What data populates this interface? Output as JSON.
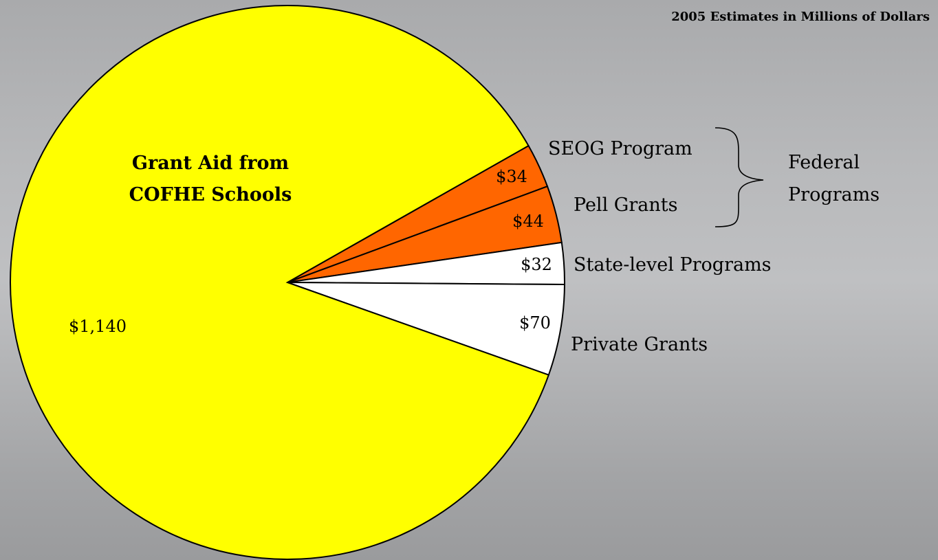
{
  "caption": "2005 Estimates in Millions of Dollars",
  "chart_data": {
    "type": "pie",
    "title": "2005 Estimates in Millions of Dollars",
    "slices": [
      {
        "label": "SEOG Program",
        "value": 34,
        "value_label": "$34",
        "color": "#ff6600"
      },
      {
        "label": "Pell Grants",
        "value": 44,
        "value_label": "$44",
        "color": "#ff6600"
      },
      {
        "label": "State-level Programs",
        "value": 32,
        "value_label": "$32",
        "color": "#ffffff"
      },
      {
        "label": "Private Grants",
        "value": 70,
        "value_label": "$70",
        "color": "#ffffff"
      },
      {
        "label": "Grant Aid from COFHE Schools",
        "value": 1140,
        "value_label": "$1,140",
        "color": "#ffff00"
      }
    ],
    "group_label": "Federal Programs",
    "group_members": [
      "SEOG Program",
      "Pell Grants"
    ]
  }
}
